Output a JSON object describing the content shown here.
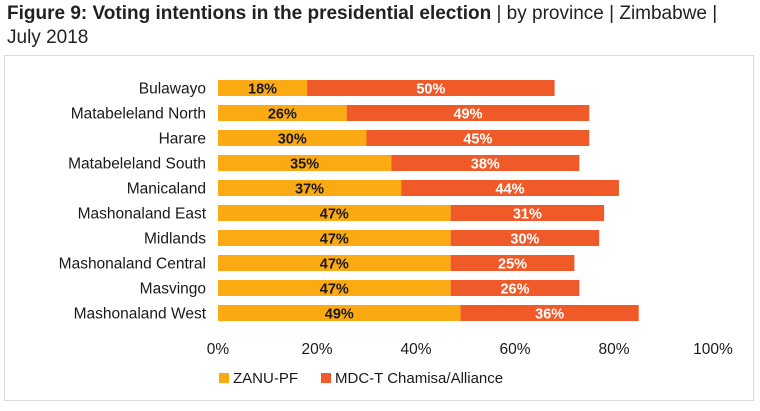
{
  "figure": {
    "title_bold": "Figure 9: Voting intentions in the presidential election",
    "title_rest": " | by province | Zimbabwe | July 2018"
  },
  "colors": {
    "zanu": "#fcaa14",
    "mdc": "#f05a28",
    "zanu_label": "#1a1a1a",
    "mdc_label": "#ffffff",
    "frame": "#d9d9d9"
  },
  "chart_data": {
    "type": "bar",
    "orientation": "horizontal",
    "stacked": true,
    "categories": [
      "Bulawayo",
      "Matabeleland North",
      "Harare",
      "Matabeleland South",
      "Manicaland",
      "Mashonaland East",
      "Midlands",
      "Mashonaland Central",
      "Masvingo",
      "Mashonaland West"
    ],
    "series": [
      {
        "name": "ZANU-PF",
        "values": [
          18,
          26,
          30,
          35,
          37,
          47,
          47,
          47,
          47,
          49
        ]
      },
      {
        "name": "MDC-T Chamisa/Alliance",
        "values": [
          50,
          49,
          45,
          38,
          44,
          31,
          30,
          25,
          26,
          36
        ]
      }
    ],
    "value_labels": [
      [
        "18%",
        "26%",
        "30%",
        "35%",
        "37%",
        "47%",
        "47%",
        "47%",
        "47%",
        "49%"
      ],
      [
        "50%",
        "49%",
        "45%",
        "38%",
        "44%",
        "31%",
        "30%",
        "25%",
        "26%",
        "36%"
      ]
    ],
    "xlim": [
      0,
      100
    ],
    "x_ticks": [
      0,
      20,
      40,
      60,
      80,
      100
    ],
    "x_tick_labels": [
      "0%",
      "20%",
      "40%",
      "60%",
      "80%",
      "100%"
    ],
    "grid": false,
    "legend_position": "bottom"
  }
}
